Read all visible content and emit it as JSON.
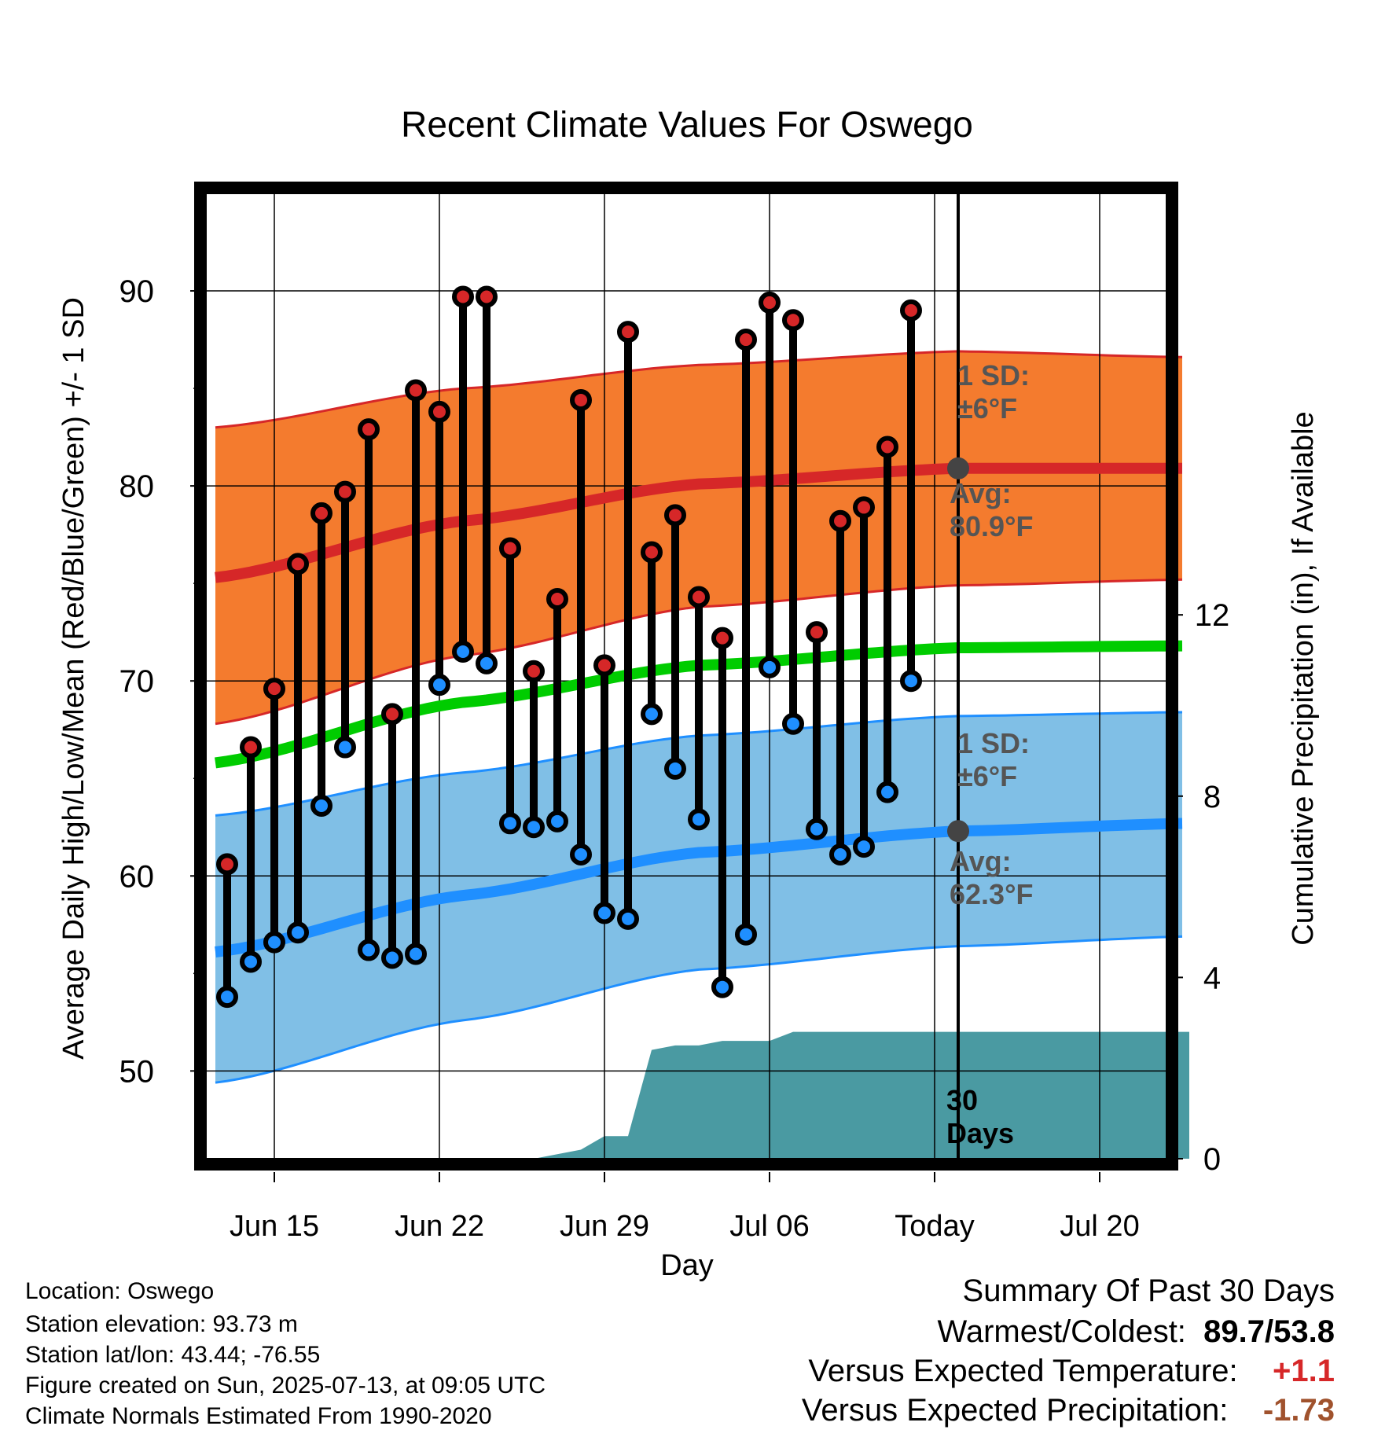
{
  "chart_data": {
    "type": "line",
    "title": "Recent Climate Values For Oswego",
    "xlabel": "Day",
    "ylabel": "Average Daily High/Low/Mean (Red/Blue/Green) +/- 1 SD",
    "y2label": "Cumulative Precipitation (in), If Available",
    "ylim": [
      45.5,
      95
    ],
    "y2lim": [
      0,
      21.3
    ],
    "yticks": [
      "50",
      "60",
      "70",
      "80",
      "90"
    ],
    "y2ticks": [
      "0",
      "4",
      "8",
      "12"
    ],
    "xticks": [
      "Jun 15",
      "Jun 22",
      "Jun 29",
      "Jul 06",
      "Today",
      "Jul 20"
    ],
    "grid": true,
    "days": [
      "Jun 13",
      "Jun 14",
      "Jun 15",
      "Jun 16",
      "Jun 17",
      "Jun 18",
      "Jun 19",
      "Jun 20",
      "Jun 21",
      "Jun 22",
      "Jun 23",
      "Jun 24",
      "Jun 25",
      "Jun 26",
      "Jun 27",
      "Jun 28",
      "Jun 29",
      "Jun 30",
      "Jul 01",
      "Jul 02",
      "Jul 03",
      "Jul 04",
      "Jul 05",
      "Jul 06",
      "Jul 07",
      "Jul 08",
      "Jul 09",
      "Jul 10",
      "Jul 11",
      "Jul 12"
    ],
    "series": [
      {
        "name": "High",
        "color": "#d62728",
        "values": [
          60.6,
          66.6,
          69.6,
          76.0,
          78.6,
          79.7,
          82.9,
          68.3,
          84.9,
          83.8,
          89.7,
          89.7,
          76.8,
          70.5,
          74.2,
          84.4,
          70.8,
          87.9,
          76.6,
          78.5,
          74.3,
          72.2,
          87.5,
          89.4,
          88.5,
          72.5,
          78.2,
          78.9,
          82.0,
          89.0
        ]
      },
      {
        "name": "Low",
        "color": "#1f8fff",
        "values": [
          53.8,
          55.6,
          56.6,
          57.1,
          63.6,
          66.6,
          56.2,
          55.8,
          56.0,
          69.8,
          71.5,
          70.9,
          62.7,
          62.5,
          62.8,
          61.1,
          58.1,
          57.8,
          68.3,
          65.5,
          62.9,
          54.3,
          57.0,
          70.7,
          67.8,
          62.4,
          61.1,
          61.5,
          64.3,
          70.0
        ]
      }
    ],
    "normals": {
      "days_offset_range": [
        -0.5,
        40.8
      ],
      "high_avg": [
        [
          -0.5,
          75.3
        ],
        [
          10,
          78.2
        ],
        [
          20,
          80.1
        ],
        [
          31,
          80.9
        ],
        [
          40.8,
          80.9
        ]
      ],
      "high_upper": [
        [
          -0.5,
          83.0
        ],
        [
          10,
          85.0
        ],
        [
          20,
          86.2
        ],
        [
          31,
          86.9
        ],
        [
          40.8,
          86.6
        ]
      ],
      "high_lower": [
        [
          -0.5,
          67.8
        ],
        [
          10,
          71.3
        ],
        [
          20,
          73.8
        ],
        [
          31,
          74.9
        ],
        [
          40.8,
          75.2
        ]
      ],
      "mean": [
        [
          -0.5,
          65.8
        ],
        [
          10,
          68.9
        ],
        [
          20,
          70.8
        ],
        [
          31,
          71.7
        ],
        [
          40.8,
          71.8
        ]
      ],
      "low_avg": [
        [
          -0.5,
          56.1
        ],
        [
          10,
          59.0
        ],
        [
          20,
          61.2
        ],
        [
          31,
          62.3
        ],
        [
          40.8,
          62.7
        ]
      ],
      "low_upper": [
        [
          -0.5,
          63.1
        ],
        [
          10,
          65.3
        ],
        [
          20,
          67.2
        ],
        [
          31,
          68.2
        ],
        [
          40.8,
          68.4
        ]
      ],
      "low_lower": [
        [
          -0.5,
          49.4
        ],
        [
          10,
          52.6
        ],
        [
          20,
          55.2
        ],
        [
          31,
          56.4
        ],
        [
          40.8,
          56.9
        ]
      ]
    },
    "precip_cumulative": [
      [
        13,
        0
      ],
      [
        14,
        0.1
      ],
      [
        15,
        0.2
      ],
      [
        16,
        0.5
      ],
      [
        17,
        0.5
      ],
      [
        18,
        2.4
      ],
      [
        19,
        2.5
      ],
      [
        20,
        2.5
      ],
      [
        21,
        2.6
      ],
      [
        23,
        2.6
      ],
      [
        24,
        2.8
      ],
      [
        25,
        2.8
      ],
      [
        40.8,
        2.8
      ]
    ],
    "today_index": 31,
    "annotations": {
      "high_sd_label": "1 SD:",
      "high_sd_value": "±6°F",
      "high_avg_label": "Avg:",
      "high_avg_value": "80.9°F",
      "low_sd_label": "1 SD:",
      "low_sd_value": "±6°F",
      "low_avg_label": "Avg:",
      "low_avg_value": "62.3°F",
      "precip_label_1": "30",
      "precip_label_2": "Days"
    },
    "colors": {
      "high_band": "#f47b2e",
      "high_line": "#d62728",
      "low_band": "#80bfe6",
      "low_line": "#1f8fff",
      "mean_line": "#00cc00",
      "precip": "#4a9aa2",
      "marker_today": "#444444"
    }
  },
  "info": {
    "location": "Location: Oswego",
    "elevation": "Station elevation: 93.73 m",
    "latlon": "Station lat/lon: 43.44; -76.55",
    "created": "Figure created on Sun, 2025-07-13, at 09:05 UTC",
    "normals": "Climate Normals Estimated From 1990-2020"
  },
  "summary": {
    "heading": "Summary Of Past 30 Days",
    "warm_cold_label": "Warmest/Coldest:",
    "warmest": "89.7",
    "slash": "/",
    "coldest": "53.8",
    "temp_label": "Versus Expected Temperature:",
    "temp_value": "+1.1",
    "temp_color": "#d62728",
    "precip_label": "Versus Expected Precipitation:",
    "precip_value": "-1.73",
    "precip_color": "#a0522d"
  }
}
